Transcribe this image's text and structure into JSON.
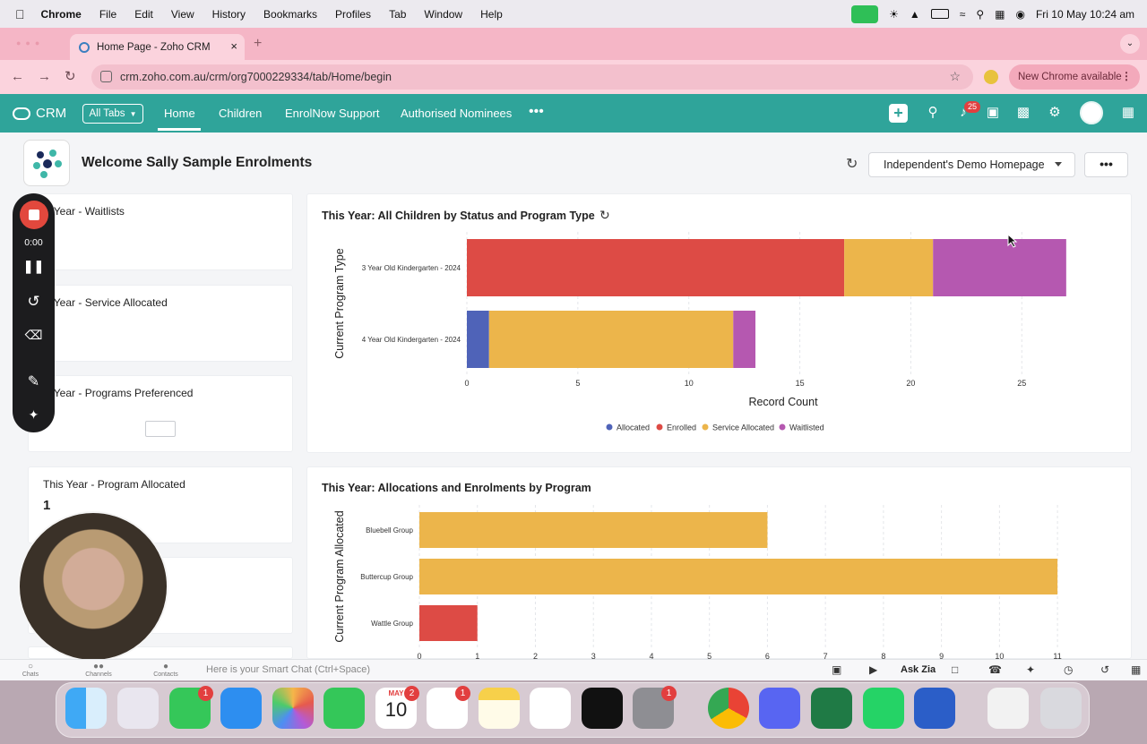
{
  "menubar": {
    "app": "Chrome",
    "items": [
      "File",
      "Edit",
      "View",
      "History",
      "Bookmarks",
      "Profiles",
      "Tab",
      "Window",
      "Help"
    ],
    "datetime": "Fri 10 May  10:24 am"
  },
  "browser": {
    "tab_title": "Home Page - Zoho CRM",
    "url": "crm.zoho.com.au/crm/org7000229334/tab/Home/begin",
    "new_chrome": "New Chrome available"
  },
  "crm": {
    "logo": "CRM",
    "all_tabs": "All Tabs",
    "tabs": [
      "Home",
      "Children",
      "EnrolNow Support",
      "Authorised Nominees"
    ],
    "notifications": "25"
  },
  "page": {
    "welcome": "Welcome Sally Sample Enrolments",
    "homepage_select": "Independent's Demo Homepage"
  },
  "kpis": [
    {
      "title": "is Year - Waitlists",
      "value": ""
    },
    {
      "title": "is Year - Service Allocated",
      "value": ""
    },
    {
      "title": "is Year - Programs Preferenced",
      "value": ""
    },
    {
      "title": "This Year - Program Allocated",
      "value": "1"
    }
  ],
  "recorder": {
    "time": "0:00"
  },
  "chart_data": [
    {
      "type": "bar",
      "orientation": "horizontal",
      "stacked": true,
      "title": "This Year: All Children by Status and Program Type",
      "xlabel": "Record Count",
      "ylabel": "Current Program Type",
      "categories": [
        "3 Year Old Kindergarten - 2024",
        "4 Year Old Kindergarten - 2024"
      ],
      "series": [
        {
          "name": "Allocated",
          "color": "#4f63b8",
          "values": [
            0,
            1
          ]
        },
        {
          "name": "Enrolled",
          "color": "#dd4b45",
          "values": [
            17,
            0
          ]
        },
        {
          "name": "Service Allocated",
          "color": "#ecb54b",
          "values": [
            4,
            11
          ]
        },
        {
          "name": "Waitlisted",
          "color": "#b558b0",
          "values": [
            6,
            1
          ]
        }
      ],
      "xticks": [
        "0",
        "5",
        "10",
        "15",
        "20",
        "25"
      ],
      "xlim": [
        0,
        28.5
      ],
      "legend": "bottom",
      "grid": true
    },
    {
      "type": "bar",
      "orientation": "horizontal",
      "title": "This Year: Allocations and Enrolments by Program",
      "ylabel": "Current Program Allocated",
      "categories": [
        "Bluebell Group",
        "Buttercup Group",
        "Wattle Group"
      ],
      "values": [
        6,
        11,
        1
      ],
      "colors": [
        "#ecb54b",
        "#ecb54b",
        "#dd4b45"
      ],
      "xticks": [
        "0",
        "1",
        "2",
        "3",
        "4",
        "5",
        "6",
        "7",
        "8",
        "9",
        "10",
        "11"
      ],
      "xlim": [
        0,
        11.4
      ],
      "grid": true
    }
  ],
  "chatbar": {
    "labels": [
      "Chats",
      "Channels",
      "Contacts"
    ],
    "placeholder": "Here is your Smart Chat (Ctrl+Space)",
    "ask_zia": "Ask Zia"
  },
  "dock": {
    "calendar_month": "MAY",
    "calendar_day": "10",
    "badges": {
      "messages": "1",
      "calendar": "2",
      "reminders": "1",
      "settings": "1"
    }
  }
}
